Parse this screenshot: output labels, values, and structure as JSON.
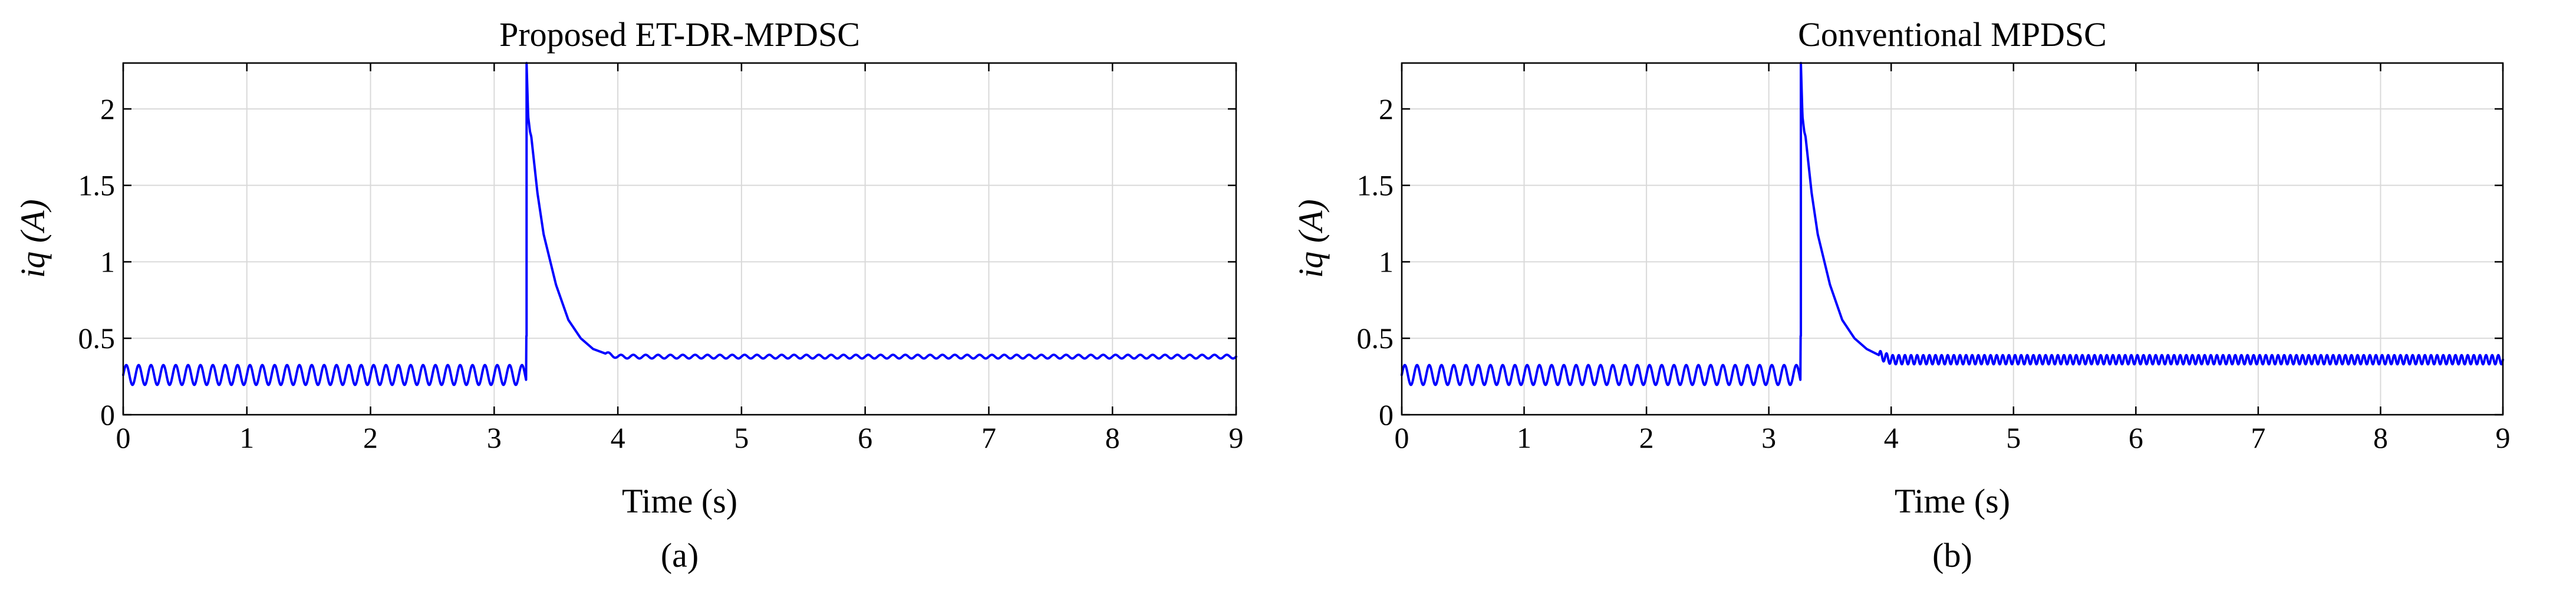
{
  "chart_data": [
    {
      "type": "line",
      "title": "Proposed ET-DR-MPDSC",
      "xlabel": "Time (s)",
      "ylabel": "iq (A)",
      "caption": "(a)",
      "xlim": [
        0,
        9
      ],
      "ylim": [
        0,
        2.3
      ],
      "xticks": [
        0,
        1,
        2,
        3,
        4,
        5,
        6,
        7,
        8,
        9
      ],
      "yticks": [
        0,
        0.5,
        1,
        1.5,
        2
      ],
      "xtick_labels": [
        "0",
        "1",
        "2",
        "3",
        "4",
        "5",
        "6",
        "7",
        "8",
        "9"
      ],
      "ytick_labels": [
        "0",
        "0.5",
        "1",
        "1.5",
        "2"
      ],
      "grid": true,
      "color": "#0000ff",
      "series": [
        {
          "x": [
            0,
            3.26,
            3.262,
            3.275,
            3.29,
            3.3,
            3.35,
            3.4,
            3.5,
            3.6,
            3.7,
            3.8,
            3.9,
            4.0,
            9.0
          ],
          "values": [
            0.26,
            0.26,
            2.3,
            1.95,
            1.85,
            1.82,
            1.45,
            1.18,
            0.85,
            0.62,
            0.5,
            0.43,
            0.4,
            0.38,
            0.38
          ],
          "oscillation": {
            "from": 0,
            "to": 3.26,
            "center": 0.26,
            "amplitude": 0.065,
            "period": 0.1
          },
          "ripple": {
            "from": 3.9,
            "to": 9,
            "amplitude": 0.012,
            "period": 0.1
          }
        }
      ]
    },
    {
      "type": "line",
      "title": "Conventional MPDSC",
      "xlabel": "Time (s)",
      "ylabel": "iq (A)",
      "caption": "(b)",
      "xlim": [
        0,
        9
      ],
      "ylim": [
        0,
        2.3
      ],
      "xticks": [
        0,
        1,
        2,
        3,
        4,
        5,
        6,
        7,
        8,
        9
      ],
      "yticks": [
        0,
        0.5,
        1,
        1.5,
        2
      ],
      "xtick_labels": [
        "0",
        "1",
        "2",
        "3",
        "4",
        "5",
        "6",
        "7",
        "8",
        "9"
      ],
      "ytick_labels": [
        "0",
        "0.5",
        "1",
        "1.5",
        "2"
      ],
      "grid": true,
      "color": "#0000ff",
      "series": [
        {
          "x": [
            0,
            3.26,
            3.262,
            3.275,
            3.29,
            3.3,
            3.35,
            3.4,
            3.5,
            3.6,
            3.7,
            3.8,
            3.9,
            4.0,
            9.0
          ],
          "values": [
            0.26,
            0.26,
            2.3,
            1.95,
            1.85,
            1.82,
            1.45,
            1.18,
            0.85,
            0.62,
            0.5,
            0.43,
            0.39,
            0.36,
            0.36
          ],
          "oscillation": {
            "from": 0,
            "to": 3.26,
            "center": 0.26,
            "amplitude": 0.065,
            "period": 0.1
          },
          "ripple": {
            "from": 3.9,
            "to": 9,
            "amplitude": 0.03,
            "period": 0.05
          }
        }
      ]
    }
  ]
}
